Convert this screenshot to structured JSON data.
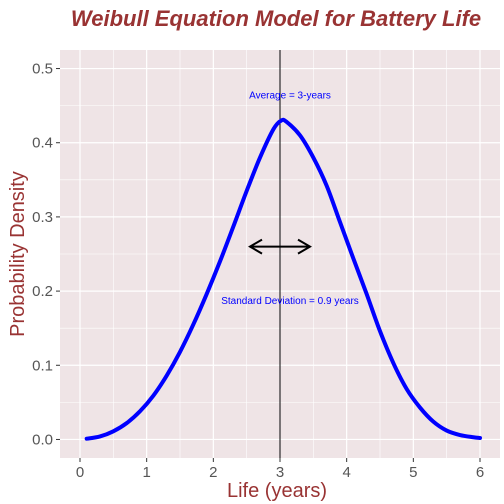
{
  "chart_data": {
    "type": "line",
    "title": "Weibull Equation Model for Battery Life",
    "xlabel": "Life (years)",
    "ylabel": "Probability Density",
    "xlim": [
      -0.3,
      6.3
    ],
    "ylim": [
      -0.025,
      0.525
    ],
    "x_ticks": [
      0,
      1,
      2,
      3,
      4,
      5,
      6
    ],
    "x_tick_labels": [
      "0",
      "1",
      "2",
      "3",
      "4",
      "5",
      "6"
    ],
    "y_ticks": [
      0.0,
      0.1,
      0.2,
      0.3,
      0.4,
      0.5
    ],
    "y_tick_labels": [
      "0.0",
      "0.1",
      "0.2",
      "0.3",
      "0.4",
      "0.5"
    ],
    "grid": true,
    "background": "#efe4e6",
    "series": [
      {
        "color": "#0000ff",
        "x": [
          0.1,
          0.3,
          0.5,
          0.7,
          0.9,
          1.1,
          1.3,
          1.5,
          1.7,
          1.9,
          2.1,
          2.3,
          2.5,
          2.7,
          2.9,
          3.02,
          3.1,
          3.3,
          3.5,
          3.7,
          3.9,
          4.1,
          4.3,
          4.5,
          4.7,
          4.9,
          5.1,
          5.3,
          5.5,
          5.7,
          5.9,
          6.0
        ],
        "y": [
          0.001,
          0.004,
          0.011,
          0.022,
          0.038,
          0.059,
          0.086,
          0.118,
          0.155,
          0.196,
          0.24,
          0.287,
          0.335,
          0.38,
          0.418,
          0.43,
          0.428,
          0.41,
          0.38,
          0.342,
          0.293,
          0.244,
          0.196,
          0.146,
          0.103,
          0.068,
          0.043,
          0.024,
          0.012,
          0.006,
          0.003,
          0.002
        ]
      }
    ],
    "vline": {
      "x": 3.0,
      "color": "#000000"
    },
    "double_arrow": {
      "x_start": 2.55,
      "x_end": 3.45,
      "y": 0.26,
      "color": "#000000"
    },
    "annotations": [
      {
        "text": "Average = 3-years",
        "x": 3.15,
        "y": 0.465,
        "color": "#0000ff"
      },
      {
        "text": "Standard Deviation = 0.9 years",
        "x": 3.15,
        "y": 0.188,
        "color": "#0000ff"
      }
    ]
  }
}
